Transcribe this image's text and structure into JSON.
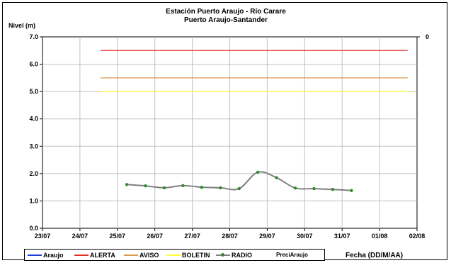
{
  "chart_data": {
    "type": "line",
    "title": "Estación Puerto Araujo - Río Carare",
    "subtitle": "Puerto Araujo-Santander",
    "ylabel": "Nivel (m)",
    "xlabel": "Fecha (DD/M/AA)",
    "ylim": [
      0,
      7
    ],
    "yticks": [
      "0.0",
      "1.0",
      "2.0",
      "3.0",
      "4.0",
      "5.0",
      "6.0",
      "7.0"
    ],
    "y2_ticks": [
      "0"
    ],
    "xlim": [
      "23/07",
      "02/08"
    ],
    "xticks": [
      "23/07",
      "24/07",
      "25/07",
      "26/07",
      "27/07",
      "28/07",
      "29/07",
      "30/07",
      "31/07",
      "01/08",
      "02/08"
    ],
    "grid": true,
    "legend_position": "bottom",
    "thresholds": [
      {
        "name": "ALERTA",
        "value": 6.5,
        "color": "#e0302b",
        "x_start": 1.55,
        "x_end": 9.75
      },
      {
        "name": "AVISO",
        "value": 5.5,
        "color": "#d89a4a",
        "x_start": 1.55,
        "x_end": 9.75
      },
      {
        "name": "BOLETIN",
        "value": 5.0,
        "color": "#ffff33",
        "x_start": 1.55,
        "x_end": 9.75
      }
    ],
    "series": [
      {
        "name": "Araujo",
        "color": "#1f3fd0",
        "values": []
      },
      {
        "name": "ALERTA",
        "color": "#e0302b",
        "values": []
      },
      {
        "name": "AVISO",
        "color": "#d89a4a",
        "values": []
      },
      {
        "name": "BOLETIN",
        "color": "#ffff33",
        "values": []
      },
      {
        "name": "RADIO",
        "color": "#808080",
        "marker_color": "#2e8b2e",
        "x": [
          2.25,
          2.75,
          3.25,
          3.75,
          4.25,
          4.75,
          5.25,
          5.75,
          6.25,
          6.75,
          7.25,
          7.75,
          8.25
        ],
        "values": [
          1.6,
          1.55,
          1.48,
          1.56,
          1.5,
          1.48,
          1.45,
          2.05,
          1.85,
          1.47,
          1.45,
          1.42,
          1.38
        ]
      },
      {
        "name": "PreciAraujo",
        "color": "#000000",
        "values": []
      }
    ]
  }
}
